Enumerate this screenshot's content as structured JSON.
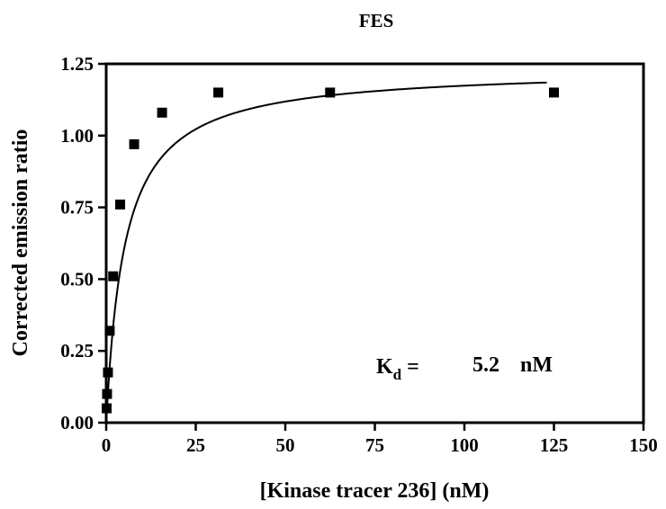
{
  "chart_data": {
    "type": "scatter",
    "title": "FES",
    "xlabel": "[Kinase tracer 236] (nM)",
    "ylabel": "Corrected emission ratio",
    "xlim": [
      0,
      150
    ],
    "ylim": [
      0,
      1.25
    ],
    "xticks": [
      "0",
      "25",
      "50",
      "75",
      "100",
      "125",
      "150"
    ],
    "yticks": [
      "0.00",
      "0.25",
      "0.50",
      "0.75",
      "1.00",
      "1.25"
    ],
    "grid": false,
    "series": [
      {
        "type": "scatter",
        "marker": "square",
        "x": [
          0.12,
          0.24,
          0.49,
          0.98,
          1.95,
          3.9,
          7.8,
          15.6,
          31.3,
          62.5,
          125
        ],
        "y": [
          0.05,
          0.1,
          0.175,
          0.32,
          0.51,
          0.76,
          0.97,
          1.08,
          1.15,
          1.15,
          1.15
        ]
      },
      {
        "type": "line",
        "model": "one-site binding",
        "bmax": 1.235,
        "kd_fit": 5.2,
        "x_range": [
          0,
          123
        ]
      }
    ],
    "annotation": {
      "k_symbol": "K",
      "k_subscript": "d",
      "equals": "=",
      "value": "5.2",
      "unit": "nM"
    },
    "colors": {
      "marks": "#000000",
      "background": "#ffffff"
    }
  }
}
